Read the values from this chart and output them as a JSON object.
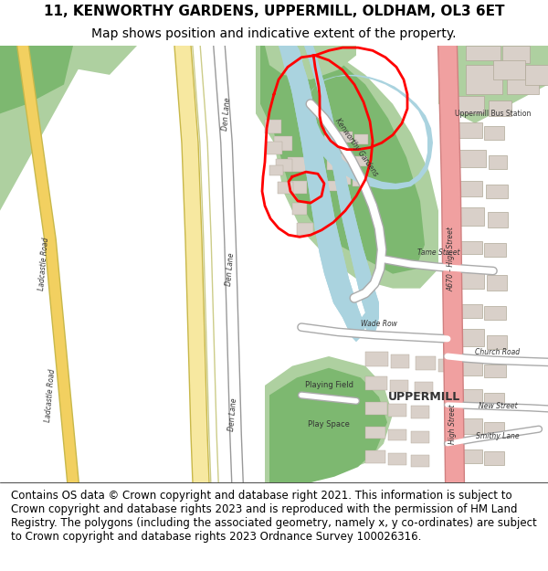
{
  "title_line1": "11, KENWORTHY GARDENS, UPPERMILL, OLDHAM, OL3 6ET",
  "title_line2": "Map shows position and indicative extent of the property.",
  "footer": "Contains OS data © Crown copyright and database right 2021. This information is subject to Crown copyright and database rights 2023 and is reproduced with the permission of HM Land Registry. The polygons (including the associated geometry, namely x, y co-ordinates) are subject to Crown copyright and database rights 2023 Ordnance Survey 100026316.",
  "title_fontsize": 11,
  "subtitle_fontsize": 10,
  "footer_fontsize": 8.5,
  "map_bg": "#f2efe9",
  "green_light": "#aed0a0",
  "green_dark": "#7db870",
  "blue_water": "#aad3df",
  "road_yellow": "#f7e8a0",
  "road_yellow2": "#f2d060",
  "road_outline": "#c8b84a",
  "road_white": "#ffffff",
  "road_gray": "#d0cdc8",
  "building_fill": "#d9d0c9",
  "building_outline": "#b0a898",
  "red_polygon": "#ff0000",
  "pink_road": "#f0a0a0",
  "text_color": "#333333"
}
